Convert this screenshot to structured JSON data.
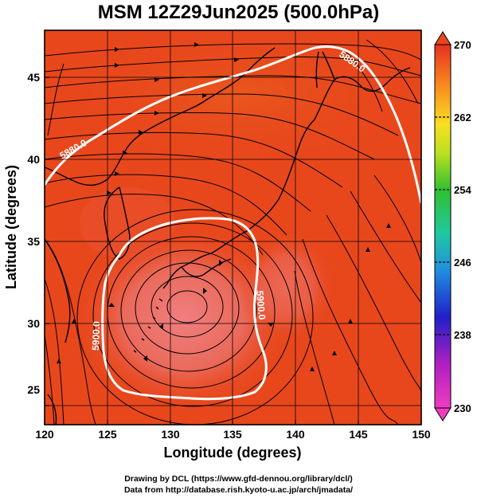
{
  "title": "MSM 12Z29Jun2025 (500.0hPa)",
  "xaxis": {
    "label": "Longitude (degrees)",
    "ticks": [
      120,
      125,
      130,
      135,
      140,
      145,
      150
    ],
    "range": [
      120,
      150
    ]
  },
  "yaxis": {
    "label": "Latitude  (degrees)",
    "ticks": [
      25,
      30,
      35,
      40,
      45
    ],
    "range": [
      22.4,
      47.6
    ]
  },
  "colorbar": {
    "ticks": [
      230,
      238,
      246,
      254,
      262,
      270
    ],
    "range": [
      230,
      270
    ]
  },
  "contours": [
    {
      "label": "5880.0",
      "lat_label": "north"
    },
    {
      "label": "5900.0",
      "lat_label": "south"
    }
  ],
  "contour_labels": [
    "5880.0",
    "5880.0",
    "5900.0",
    "5900.0"
  ],
  "footer": {
    "line1": "Drawing by DCL (https://www.gfd-dennou.org/library/dcl/)",
    "line2": "Data from http://database.rish.kyoto-u.ac.jp/arch/jmadata/"
  },
  "colors": {
    "field_main": "#e8471c",
    "field_warm": "#e94f36",
    "field_core": "#ea7070",
    "contour": "#ffffff"
  }
}
